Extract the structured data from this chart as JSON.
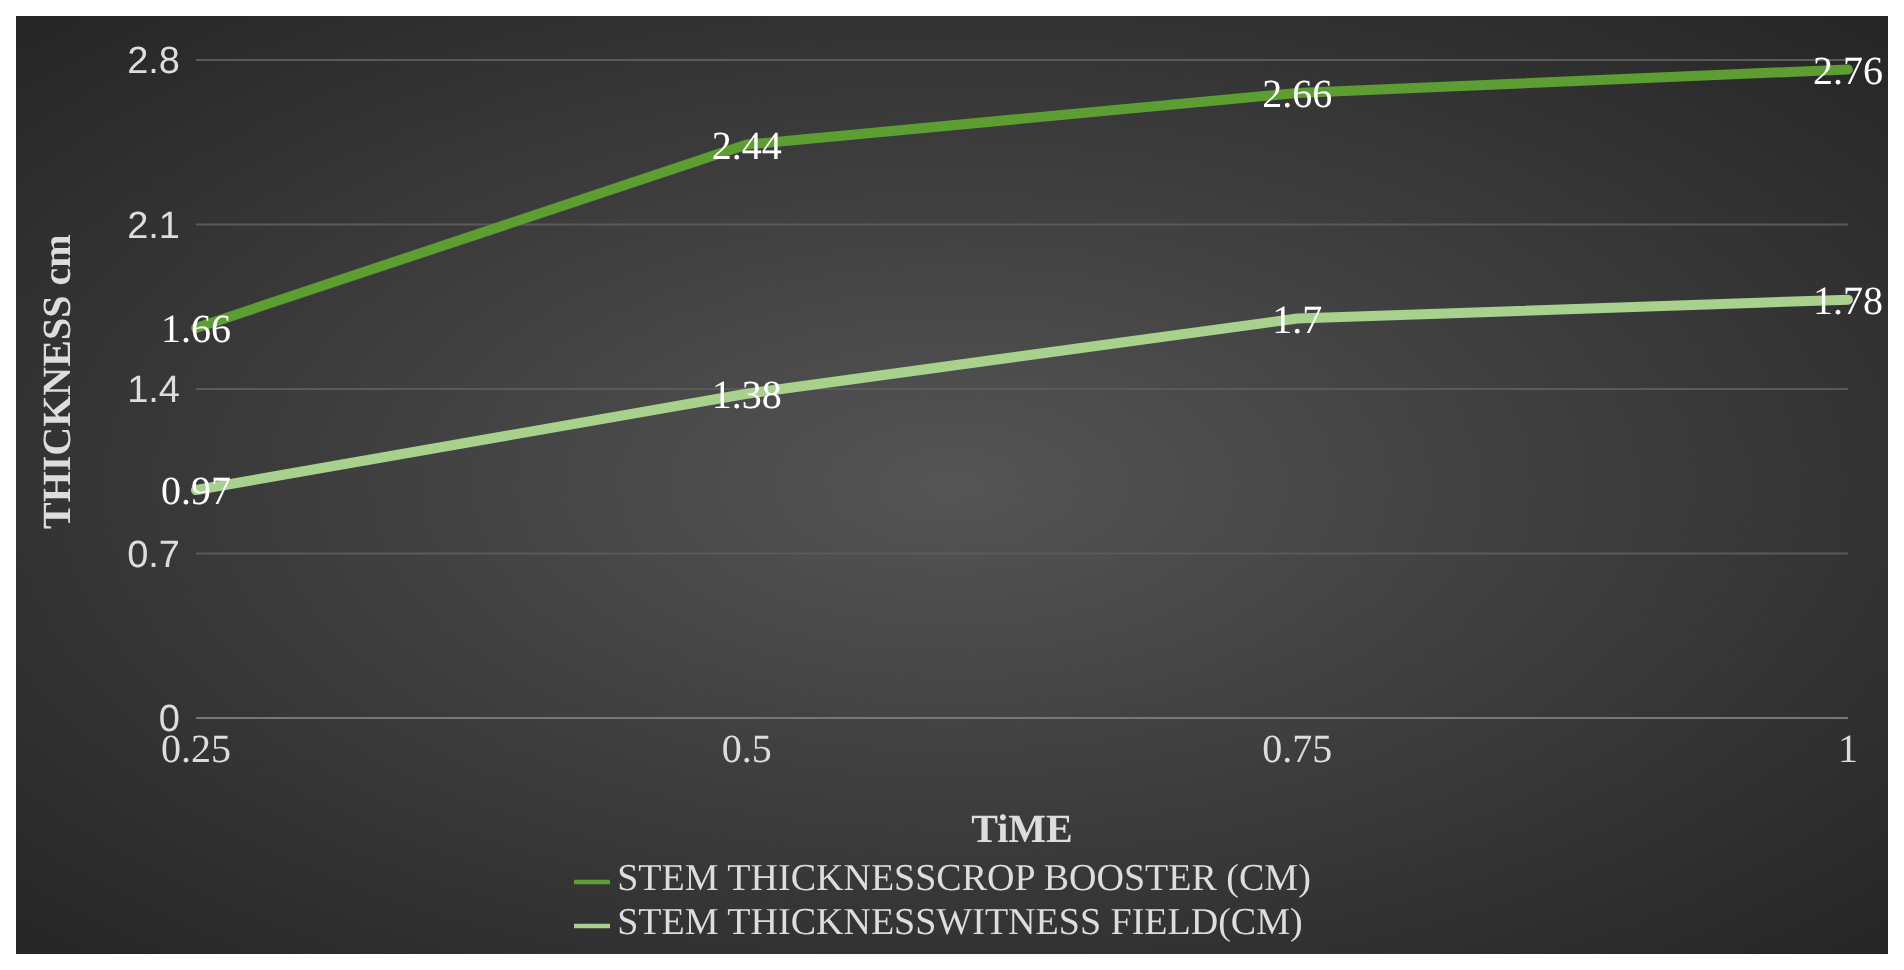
{
  "chart_data": {
    "type": "line",
    "xlabel": "TiME",
    "ylabel": "THICKNESS cm",
    "categories": [
      "0.25",
      "0.5",
      "0.75",
      "1"
    ],
    "series": [
      {
        "name": "STEM THICKNESSCROP BOOSTER (CM)",
        "color": "#5c9e31",
        "values": [
          1.66,
          2.44,
          2.66,
          2.76
        ]
      },
      {
        "name": "STEM THICKNESSWITNESS FIELD(CM)",
        "color": "#a9d18e",
        "values": [
          0.97,
          1.38,
          1.7,
          1.78
        ]
      }
    ],
    "ylim": [
      0,
      2.8
    ],
    "yticks": [
      0,
      0.7,
      1.4,
      2.1,
      2.8
    ],
    "grid": "y",
    "legend": "bottom",
    "data_labels": true,
    "marker": "none",
    "line_style": "solid"
  }
}
